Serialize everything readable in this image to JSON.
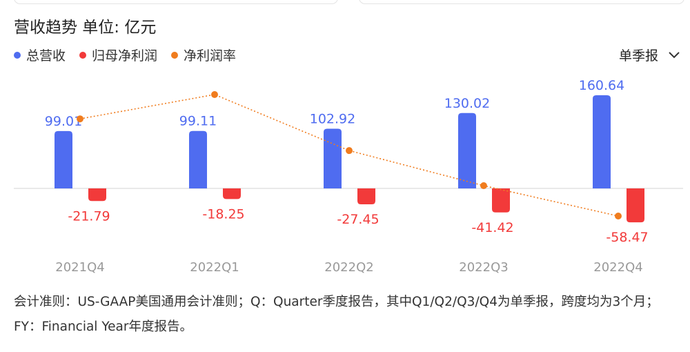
{
  "title": "营收趋势  单位: 亿元",
  "legend": [
    {
      "label": "总营收",
      "color": "#4f6cf0"
    },
    {
      "label": "归母净利润",
      "color": "#f23a3a"
    },
    {
      "label": "净利润率",
      "color": "#f07c1e"
    }
  ],
  "period_select": {
    "label": "单季报",
    "icon": "chevron-down-icon"
  },
  "chart_data": {
    "type": "bar",
    "categories": [
      "2021Q4",
      "2022Q1",
      "2022Q2",
      "2022Q3",
      "2022Q4"
    ],
    "series": [
      {
        "name": "总营收",
        "type": "bar",
        "color": "#4f6cf0",
        "values": [
          99.01,
          99.11,
          102.92,
          130.02,
          160.64
        ]
      },
      {
        "name": "归母净利润",
        "type": "bar",
        "color": "#f23a3a",
        "values": [
          -21.79,
          -18.25,
          -27.45,
          -41.42,
          -58.47
        ]
      },
      {
        "name": "净利润率",
        "type": "line",
        "color": "#f07c1e",
        "values": [
          -22.0,
          -18.4,
          -26.7,
          -31.9,
          -36.4
        ]
      }
    ],
    "grid": false,
    "legend_position": "top-left"
  },
  "footnote": "会计准则：US-GAAP美国通用会计准则；Q：Quarter季度报告，其中Q1/Q2/Q3/Q4为单季报，跨度均为3个月；FY：Financial Year年度报告。"
}
